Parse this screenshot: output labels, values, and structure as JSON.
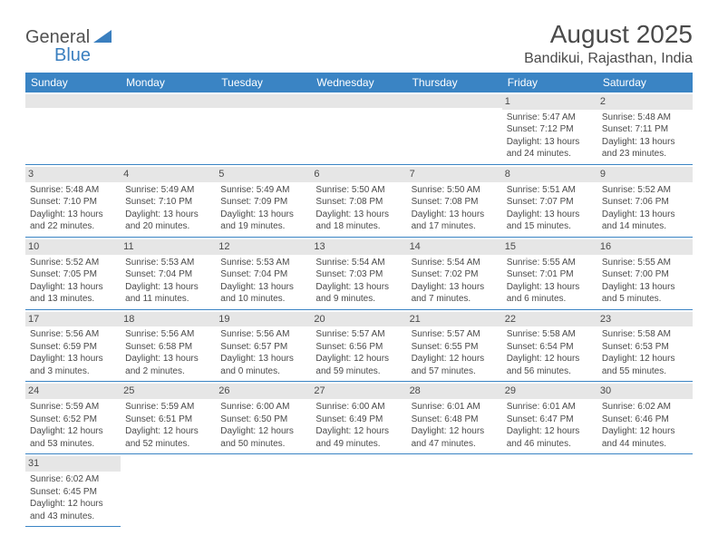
{
  "logo": {
    "text1": "General",
    "text2": "Blue"
  },
  "title": "August 2025",
  "location": "Bandikui, Rajasthan, India",
  "colors": {
    "header_bg": "#3a84c4",
    "header_fg": "#ffffff",
    "daynum_bg": "#e6e6e6",
    "row_border": "#3a84c4",
    "text": "#4a4a4a",
    "logo_blue": "#3a7fbf"
  },
  "weekdays": [
    "Sunday",
    "Monday",
    "Tuesday",
    "Wednesday",
    "Thursday",
    "Friday",
    "Saturday"
  ],
  "grid": [
    [
      null,
      null,
      null,
      null,
      null,
      {
        "n": "1",
        "sr": "5:47 AM",
        "ss": "7:12 PM",
        "dl": "13 hours and 24 minutes."
      },
      {
        "n": "2",
        "sr": "5:48 AM",
        "ss": "7:11 PM",
        "dl": "13 hours and 23 minutes."
      }
    ],
    [
      {
        "n": "3",
        "sr": "5:48 AM",
        "ss": "7:10 PM",
        "dl": "13 hours and 22 minutes."
      },
      {
        "n": "4",
        "sr": "5:49 AM",
        "ss": "7:10 PM",
        "dl": "13 hours and 20 minutes."
      },
      {
        "n": "5",
        "sr": "5:49 AM",
        "ss": "7:09 PM",
        "dl": "13 hours and 19 minutes."
      },
      {
        "n": "6",
        "sr": "5:50 AM",
        "ss": "7:08 PM",
        "dl": "13 hours and 18 minutes."
      },
      {
        "n": "7",
        "sr": "5:50 AM",
        "ss": "7:08 PM",
        "dl": "13 hours and 17 minutes."
      },
      {
        "n": "8",
        "sr": "5:51 AM",
        "ss": "7:07 PM",
        "dl": "13 hours and 15 minutes."
      },
      {
        "n": "9",
        "sr": "5:52 AM",
        "ss": "7:06 PM",
        "dl": "13 hours and 14 minutes."
      }
    ],
    [
      {
        "n": "10",
        "sr": "5:52 AM",
        "ss": "7:05 PM",
        "dl": "13 hours and 13 minutes."
      },
      {
        "n": "11",
        "sr": "5:53 AM",
        "ss": "7:04 PM",
        "dl": "13 hours and 11 minutes."
      },
      {
        "n": "12",
        "sr": "5:53 AM",
        "ss": "7:04 PM",
        "dl": "13 hours and 10 minutes."
      },
      {
        "n": "13",
        "sr": "5:54 AM",
        "ss": "7:03 PM",
        "dl": "13 hours and 9 minutes."
      },
      {
        "n": "14",
        "sr": "5:54 AM",
        "ss": "7:02 PM",
        "dl": "13 hours and 7 minutes."
      },
      {
        "n": "15",
        "sr": "5:55 AM",
        "ss": "7:01 PM",
        "dl": "13 hours and 6 minutes."
      },
      {
        "n": "16",
        "sr": "5:55 AM",
        "ss": "7:00 PM",
        "dl": "13 hours and 5 minutes."
      }
    ],
    [
      {
        "n": "17",
        "sr": "5:56 AM",
        "ss": "6:59 PM",
        "dl": "13 hours and 3 minutes."
      },
      {
        "n": "18",
        "sr": "5:56 AM",
        "ss": "6:58 PM",
        "dl": "13 hours and 2 minutes."
      },
      {
        "n": "19",
        "sr": "5:56 AM",
        "ss": "6:57 PM",
        "dl": "13 hours and 0 minutes."
      },
      {
        "n": "20",
        "sr": "5:57 AM",
        "ss": "6:56 PM",
        "dl": "12 hours and 59 minutes."
      },
      {
        "n": "21",
        "sr": "5:57 AM",
        "ss": "6:55 PM",
        "dl": "12 hours and 57 minutes."
      },
      {
        "n": "22",
        "sr": "5:58 AM",
        "ss": "6:54 PM",
        "dl": "12 hours and 56 minutes."
      },
      {
        "n": "23",
        "sr": "5:58 AM",
        "ss": "6:53 PM",
        "dl": "12 hours and 55 minutes."
      }
    ],
    [
      {
        "n": "24",
        "sr": "5:59 AM",
        "ss": "6:52 PM",
        "dl": "12 hours and 53 minutes."
      },
      {
        "n": "25",
        "sr": "5:59 AM",
        "ss": "6:51 PM",
        "dl": "12 hours and 52 minutes."
      },
      {
        "n": "26",
        "sr": "6:00 AM",
        "ss": "6:50 PM",
        "dl": "12 hours and 50 minutes."
      },
      {
        "n": "27",
        "sr": "6:00 AM",
        "ss": "6:49 PM",
        "dl": "12 hours and 49 minutes."
      },
      {
        "n": "28",
        "sr": "6:01 AM",
        "ss": "6:48 PM",
        "dl": "12 hours and 47 minutes."
      },
      {
        "n": "29",
        "sr": "6:01 AM",
        "ss": "6:47 PM",
        "dl": "12 hours and 46 minutes."
      },
      {
        "n": "30",
        "sr": "6:02 AM",
        "ss": "6:46 PM",
        "dl": "12 hours and 44 minutes."
      }
    ],
    [
      {
        "n": "31",
        "sr": "6:02 AM",
        "ss": "6:45 PM",
        "dl": "12 hours and 43 minutes."
      },
      null,
      null,
      null,
      null,
      null,
      null
    ]
  ],
  "labels": {
    "sunrise": "Sunrise:",
    "sunset": "Sunset:",
    "daylight": "Daylight:"
  }
}
